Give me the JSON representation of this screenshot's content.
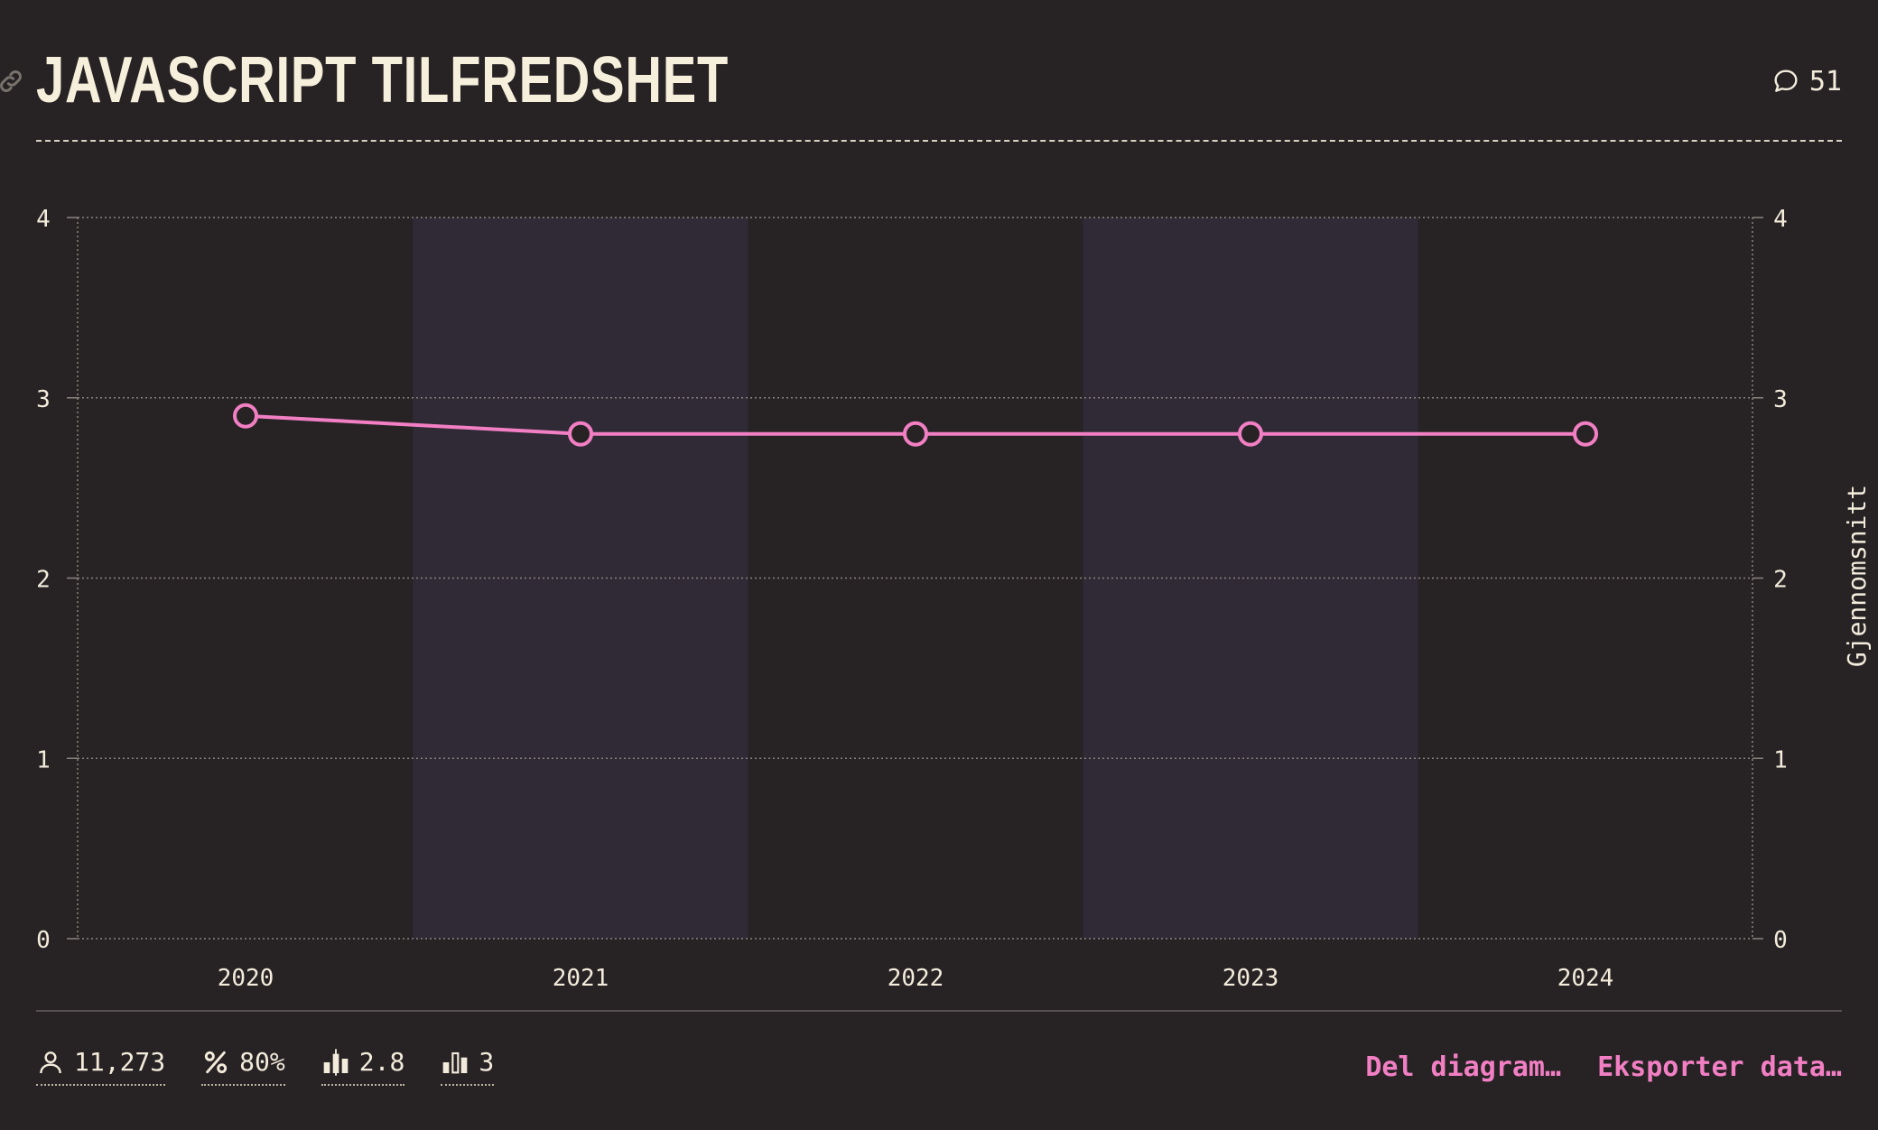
{
  "header": {
    "title": "JavaScript tilfredshet",
    "comment_count": "51"
  },
  "chart_data": {
    "type": "line",
    "title": "JavaScript tilfredshet",
    "categories": [
      "2020",
      "2021",
      "2022",
      "2023",
      "2024"
    ],
    "series": [
      {
        "values": [
          2.9,
          2.8,
          2.8,
          2.8,
          2.8
        ]
      }
    ],
    "ylim": [
      0,
      4
    ],
    "yticks": [
      "0",
      "1",
      "2",
      "3",
      "4"
    ],
    "ylabel_right": "Gjennomsnitt",
    "grid": true,
    "alternate_bands": true,
    "colors": {
      "line": "#f27fc4",
      "band": "#302a36",
      "grid": "#8a8480",
      "text": "#f3ecdc"
    }
  },
  "stats": [
    {
      "icon": "user-icon",
      "value": "11,273"
    },
    {
      "icon": "percent-icon",
      "value": "80%"
    },
    {
      "icon": "average-bars-icon",
      "value": "2.8"
    },
    {
      "icon": "median-bars-icon",
      "value": "3"
    }
  ],
  "actions": {
    "share": "Del diagram…",
    "export": "Eksporter data…"
  }
}
